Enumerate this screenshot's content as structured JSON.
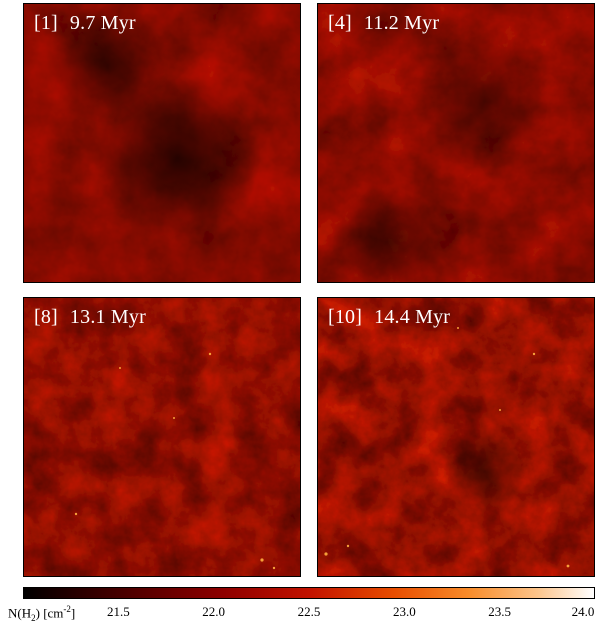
{
  "panels": [
    {
      "id": "1",
      "label_index": "[1]",
      "label_time": "9.7 Myr"
    },
    {
      "id": "4",
      "label_index": "[4]",
      "label_time": "11.2 Myr"
    },
    {
      "id": "8",
      "label_index": "[8]",
      "label_time": "13.1 Myr"
    },
    {
      "id": "10",
      "label_index": "[10]",
      "label_time": "14.4 Myr"
    }
  ],
  "colorbar": {
    "label_main": "N(H",
    "label_sub": "2",
    "label_unit_open": ") [cm",
    "label_exp": "-2",
    "label_close": "]",
    "ticks": [
      "21.5",
      "22.0",
      "22.5",
      "23.0",
      "23.5",
      "24.0"
    ],
    "range": [
      21.0,
      24.0
    ]
  },
  "colors": {
    "background_dark": "#3a0000",
    "filament_red": "#b01000",
    "hotspot": "#ffb040"
  }
}
